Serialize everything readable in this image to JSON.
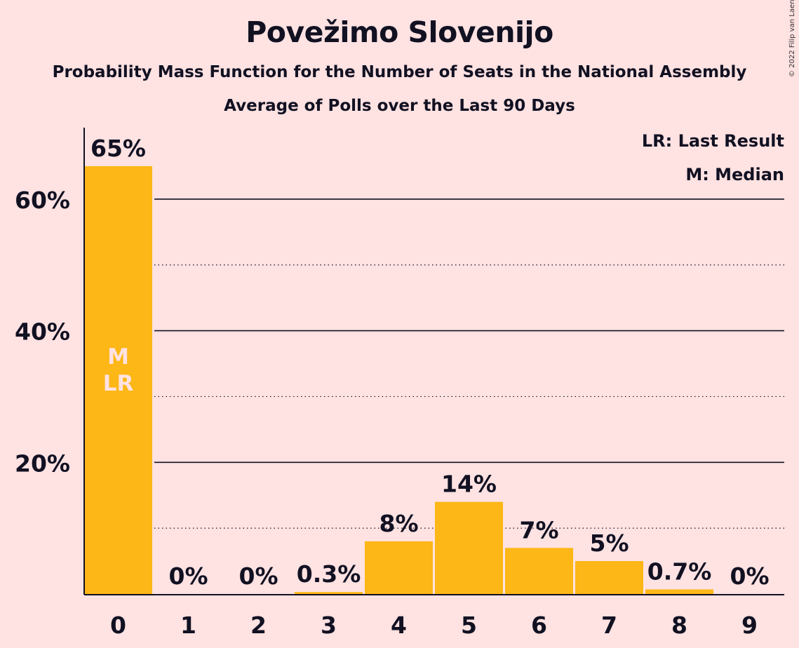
{
  "title": "Povežimo Slovenijo",
  "subtitle": "Probability Mass Function for the Number of Seats in the National Assembly",
  "subtitle2": "Average of Polls over the Last 90 Days",
  "copyright": "© 2022 Filip van Laenen",
  "legend": {
    "last_result": "LR: Last Result",
    "median": "M: Median"
  },
  "colors": {
    "background": "#FFE2E2",
    "bar": "#FDB716",
    "bar_marker_text": "#FFE2E2",
    "text": "#111122"
  },
  "chart_data": {
    "type": "bar",
    "title": "Povežimo Slovenijo",
    "categories": [
      "0",
      "1",
      "2",
      "3",
      "4",
      "5",
      "6",
      "7",
      "8",
      "9"
    ],
    "values": [
      65,
      0,
      0,
      0.3,
      8,
      14,
      7,
      5,
      0.7,
      0
    ],
    "value_labels": [
      "65%",
      "0%",
      "0%",
      "0.3%",
      "8%",
      "14%",
      "7%",
      "5%",
      "0.7%",
      "0%"
    ],
    "y_ticks": [
      {
        "value": 20,
        "label": "20%"
      },
      {
        "value": 40,
        "label": "40%"
      },
      {
        "value": 60,
        "label": "60%"
      }
    ],
    "minor_gridlines": [
      10,
      30,
      50
    ],
    "ylim": [
      0,
      70
    ],
    "bar_markers": [
      {
        "category": "0",
        "lines": [
          "M",
          "LR"
        ]
      }
    ],
    "xlabel": "",
    "ylabel": "",
    "legend_position": "top-right",
    "grid": true
  }
}
